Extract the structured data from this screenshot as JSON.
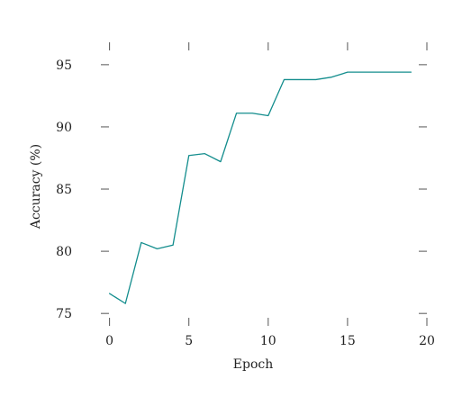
{
  "chart_data": {
    "type": "line",
    "xlabel": "Epoch",
    "ylabel": "Accuracy (%)",
    "xlim": [
      -1,
      20
    ],
    "ylim": [
      74,
      96.8
    ],
    "xticks": [
      0,
      5,
      10,
      15,
      20
    ],
    "yticks": [
      75,
      80,
      85,
      90,
      95
    ],
    "xtick_labels": [
      "0",
      "5",
      "10",
      "15",
      "20"
    ],
    "ytick_labels": [
      "75",
      "80",
      "85",
      "90",
      "95"
    ],
    "grid": false,
    "legend": "none",
    "series": [
      {
        "color": "#138d8d",
        "x": [
          0,
          1,
          2,
          3,
          4,
          5,
          6,
          7,
          8,
          9,
          10,
          11,
          12,
          13,
          14,
          15,
          16,
          17,
          18,
          19
        ],
        "y": [
          76.6,
          75.8,
          80.7,
          80.2,
          80.5,
          87.7,
          87.85,
          87.2,
          91.1,
          91.1,
          90.9,
          93.8,
          93.8,
          93.8,
          94.0,
          94.4,
          94.4,
          94.4,
          94.4,
          94.4
        ]
      }
    ]
  }
}
